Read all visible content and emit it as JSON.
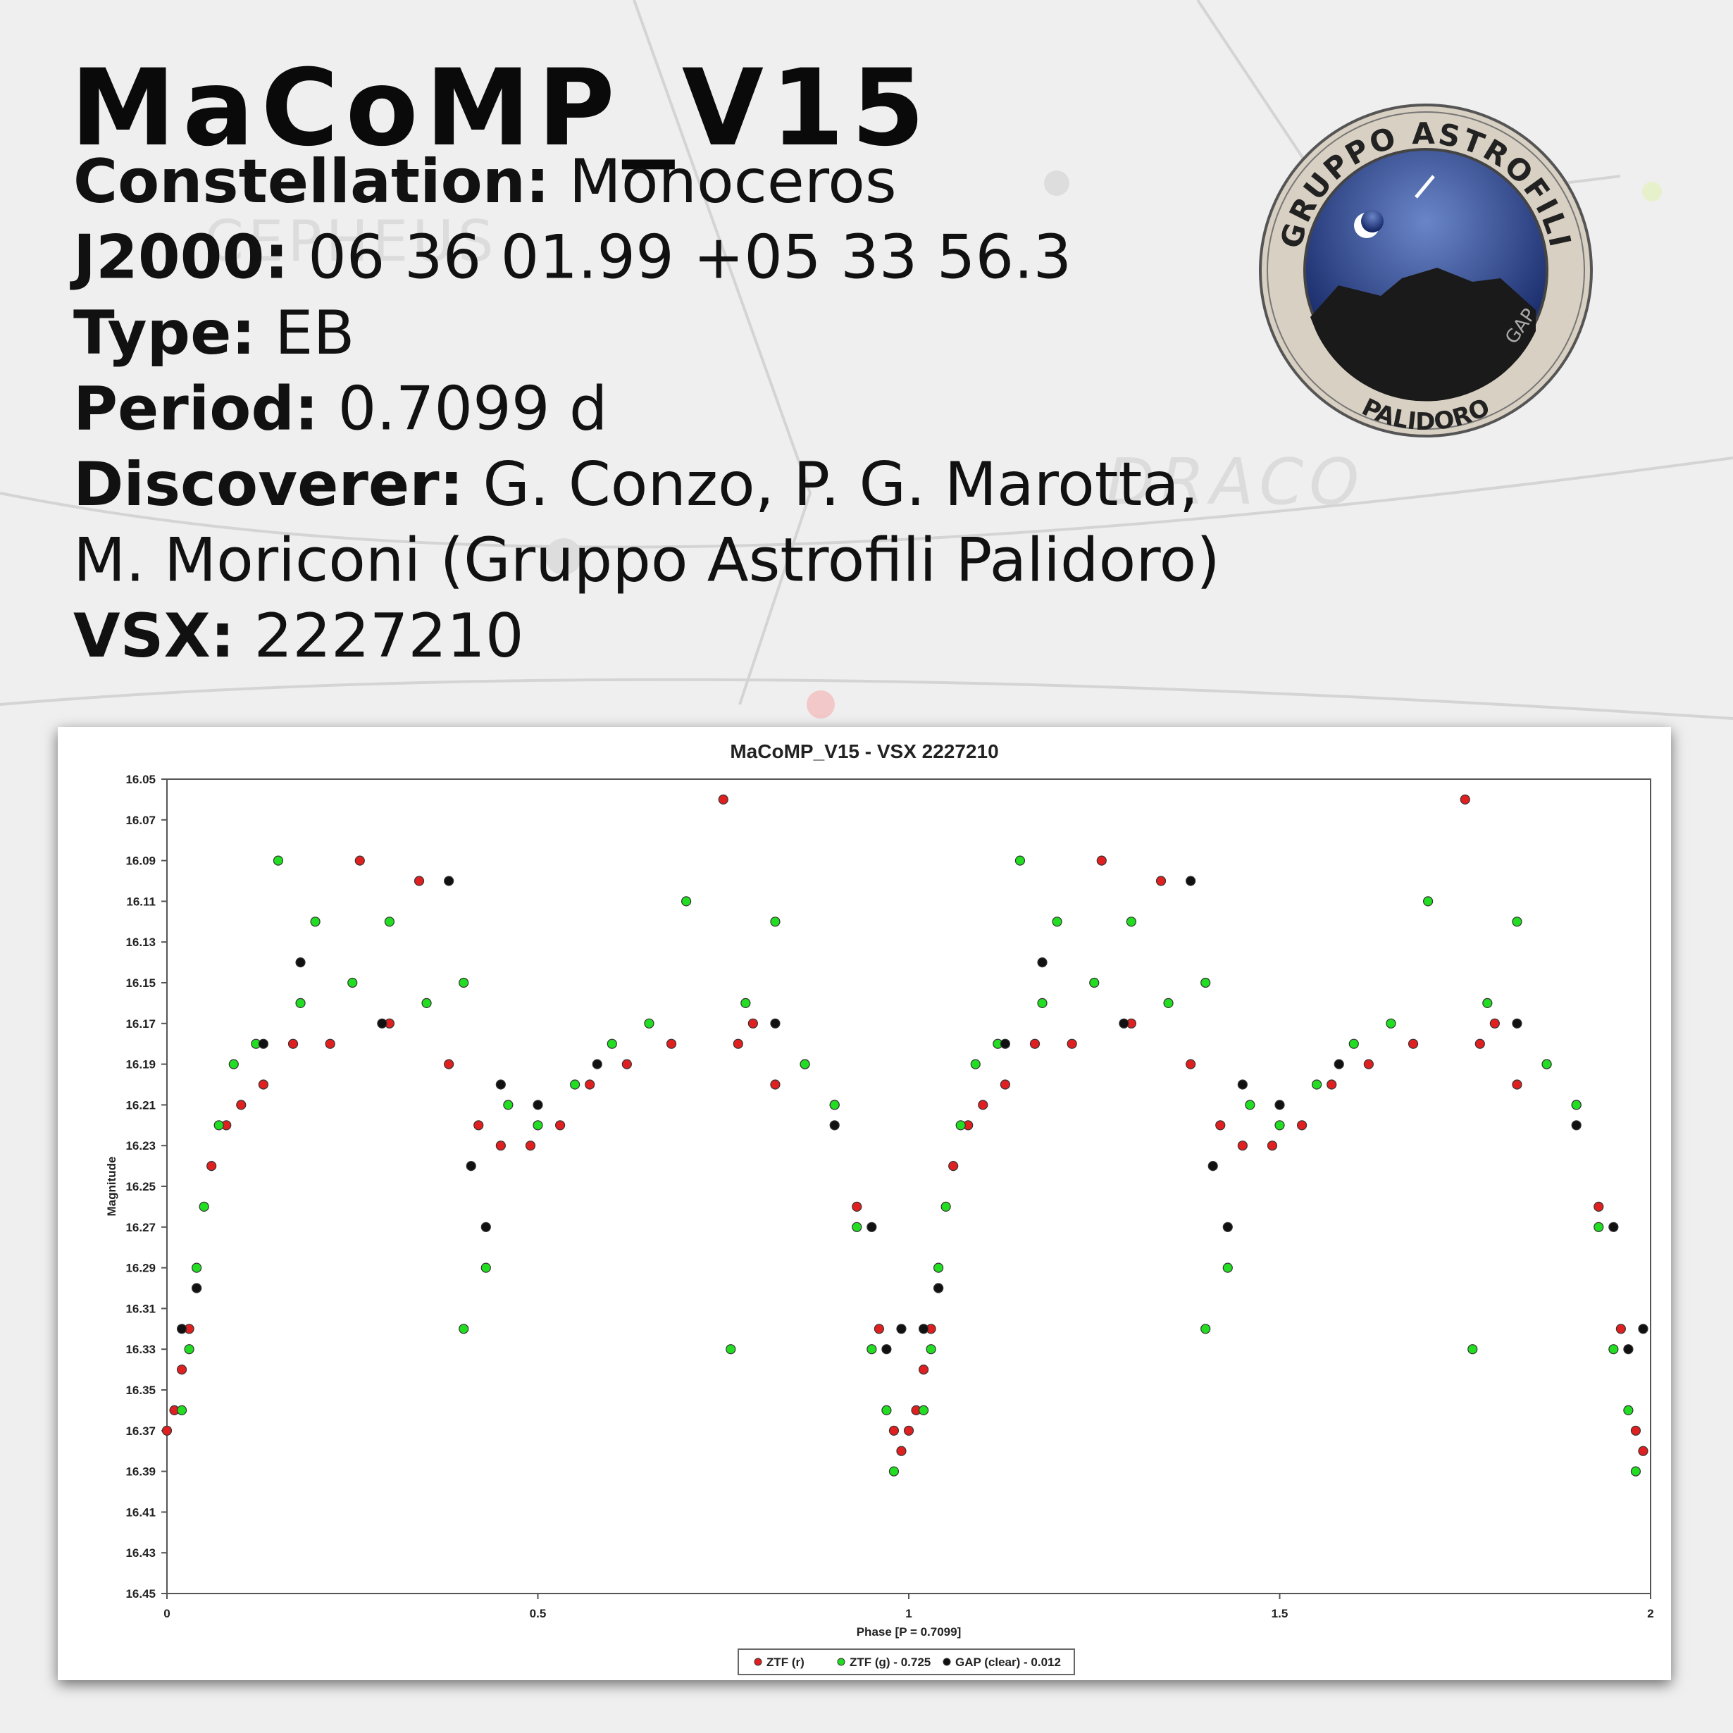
{
  "header": {
    "title": "MaCoMP_V15",
    "fields": [
      {
        "label": "Constellation:",
        "value": "Monoceros"
      },
      {
        "label": "J2000:",
        "value": "06 36 01.99 +05 33 56.3"
      },
      {
        "label": "Type:",
        "value": "EB"
      },
      {
        "label": "Period:",
        "value": "0.7099 d"
      },
      {
        "label": "Discoverer:",
        "value": "G. Conzo, P. G. Marotta,",
        "continuation": "M. Moriconi (Gruppo Astrofili Palidoro)"
      },
      {
        "label": "VSX:",
        "value": "2227210"
      }
    ]
  },
  "background_labels": [
    "CEPHEUS",
    "DRACO"
  ],
  "logo": {
    "top_text": "GRUPPO ASTROFILI",
    "bottom_text": "PALIDORO",
    "mark": "GAP"
  },
  "chart_data": {
    "type": "scatter",
    "title": "MaCoMP_V15 - VSX 2227210",
    "x_label": "Phase [P = 0.7099]",
    "y_label": "Magnitude",
    "xlim": [
      0,
      2
    ],
    "xticks": [
      0,
      0.5,
      1,
      1.5,
      2
    ],
    "ylim": [
      16.05,
      16.45
    ],
    "y_reversed": true,
    "yticks": [
      16.05,
      16.07,
      16.09,
      16.11,
      16.13,
      16.15,
      16.17,
      16.19,
      16.21,
      16.23,
      16.25,
      16.27,
      16.29,
      16.31,
      16.33,
      16.35,
      16.37,
      16.39,
      16.41,
      16.43,
      16.45
    ],
    "grid": false,
    "legend": "bottom",
    "series": [
      {
        "name": "ZTF (r)",
        "color": "#e02020",
        "x": [
          0,
          0.01,
          0.02,
          0.03,
          0.04,
          0.06,
          0.08,
          0.1,
          0.13,
          0.17,
          0.22,
          0.26,
          0.3,
          0.34,
          0.38,
          0.42,
          0.45,
          0.49,
          0.53,
          0.57,
          0.62,
          0.68,
          0.75,
          0.77,
          0.79,
          0.82,
          0.86,
          0.9,
          0.93,
          0.96,
          0.98,
          0.99,
          1,
          1.01,
          1.02,
          1.03,
          1.04,
          1.06,
          1.08,
          1.1,
          1.13,
          1.17,
          1.22,
          1.26,
          1.3,
          1.34,
          1.38,
          1.42,
          1.45,
          1.49,
          1.53,
          1.57,
          1.62,
          1.68,
          1.75,
          1.77,
          1.79,
          1.82,
          1.86,
          1.9,
          1.93,
          1.96,
          1.98,
          1.99
        ],
        "values": [
          16.37,
          16.36,
          16.34,
          16.32,
          16.3,
          16.24,
          16.22,
          16.21,
          16.2,
          16.18,
          16.18,
          16.09,
          16.17,
          16.1,
          16.19,
          16.22,
          16.23,
          16.23,
          16.22,
          16.2,
          16.19,
          16.18,
          16.06,
          16.18,
          16.17,
          16.2,
          16.19,
          16.21,
          16.26,
          16.32,
          16.37,
          16.38,
          16.37,
          16.36,
          16.34,
          16.32,
          16.3,
          16.24,
          16.22,
          16.21,
          16.2,
          16.18,
          16.18,
          16.09,
          16.17,
          16.1,
          16.19,
          16.22,
          16.23,
          16.23,
          16.22,
          16.2,
          16.19,
          16.18,
          16.06,
          16.18,
          16.17,
          16.2,
          16.19,
          16.21,
          16.26,
          16.32,
          16.37,
          16.38
        ]
      },
      {
        "name": "ZTF (g) - 0.725",
        "color": "#22dd22",
        "x": [
          0.02,
          0.03,
          0.04,
          0.05,
          0.07,
          0.09,
          0.12,
          0.15,
          0.18,
          0.2,
          0.25,
          0.3,
          0.35,
          0.4,
          0.4,
          0.43,
          0.46,
          0.5,
          0.55,
          0.6,
          0.65,
          0.7,
          0.76,
          0.78,
          0.82,
          0.86,
          0.9,
          0.93,
          0.95,
          0.97,
          0.98,
          1.02,
          1.03,
          1.04,
          1.05,
          1.07,
          1.09,
          1.12,
          1.15,
          1.18,
          1.2,
          1.25,
          1.3,
          1.35,
          1.4,
          1.4,
          1.43,
          1.46,
          1.5,
          1.55,
          1.6,
          1.65,
          1.7,
          1.76,
          1.78,
          1.82,
          1.86,
          1.9,
          1.93,
          1.95,
          1.97,
          1.98
        ],
        "values": [
          16.36,
          16.33,
          16.29,
          16.26,
          16.22,
          16.19,
          16.18,
          16.09,
          16.16,
          16.12,
          16.15,
          16.12,
          16.16,
          16.15,
          16.32,
          16.29,
          16.21,
          16.22,
          16.2,
          16.18,
          16.17,
          16.11,
          16.33,
          16.16,
          16.12,
          16.19,
          16.21,
          16.27,
          16.33,
          16.36,
          16.39,
          16.36,
          16.33,
          16.29,
          16.26,
          16.22,
          16.19,
          16.18,
          16.09,
          16.16,
          16.12,
          16.15,
          16.12,
          16.16,
          16.15,
          16.32,
          16.29,
          16.21,
          16.22,
          16.2,
          16.18,
          16.17,
          16.11,
          16.33,
          16.16,
          16.12,
          16.19,
          16.21,
          16.27,
          16.33,
          16.36,
          16.39
        ]
      },
      {
        "name": "GAP (clear) - 0.012",
        "color": "#111111",
        "x": [
          0.02,
          0.04,
          0.13,
          0.18,
          0.29,
          0.38,
          0.41,
          0.43,
          0.45,
          0.5,
          0.58,
          0.82,
          0.9,
          0.95,
          0.97,
          0.99,
          1.02,
          1.04,
          1.13,
          1.18,
          1.29,
          1.38,
          1.41,
          1.43,
          1.45,
          1.5,
          1.58,
          1.82,
          1.9,
          1.95,
          1.97,
          1.99
        ],
        "values": [
          16.32,
          16.3,
          16.18,
          16.14,
          16.17,
          16.1,
          16.24,
          16.27,
          16.2,
          16.21,
          16.19,
          16.17,
          16.22,
          16.27,
          16.33,
          16.32,
          16.32,
          16.3,
          16.18,
          16.14,
          16.17,
          16.1,
          16.24,
          16.27,
          16.2,
          16.21,
          16.19,
          16.17,
          16.22,
          16.27,
          16.33,
          16.32
        ]
      }
    ]
  }
}
